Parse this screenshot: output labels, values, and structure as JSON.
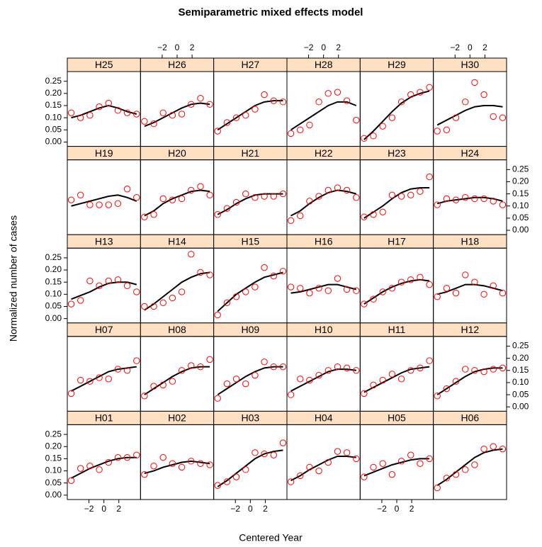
{
  "chart_data": {
    "type": "trellis",
    "title": "Semiparametric mixed effects model",
    "x_label": "Centered Year",
    "y_label": "Normalized number of cases",
    "x": [
      -4.375,
      -3.125,
      -1.875,
      -0.625,
      0.625,
      1.875,
      3.125,
      4.375
    ],
    "xlim": [
      -4.9,
      4.9
    ],
    "xticks": [
      {
        "value": -2,
        "label": "−2"
      },
      0,
      2
    ],
    "ylim": [
      -0.018,
      0.29
    ],
    "yticks": [
      {
        "value": 0,
        "label": "0.00"
      },
      {
        "value": 0.05,
        "label": "0.05"
      },
      {
        "value": 0.1,
        "label": "0.10"
      },
      {
        "value": 0.15,
        "label": "0.15"
      },
      {
        "value": 0.2,
        "label": "0.20"
      },
      {
        "value": 0.25,
        "label": "0.25"
      }
    ],
    "point_color": "#ff0000",
    "line_color": "#000000",
    "strip_color": "#ffe0c2",
    "panels": [
      {
        "title": "H25",
        "points": [
          0.12,
          0.1,
          0.11,
          0.145,
          0.16,
          0.13,
          0.12,
          0.115
        ],
        "fit": [
          0.1,
          0.11,
          0.125,
          0.14,
          0.15,
          0.14,
          0.125,
          0.115
        ]
      },
      {
        "title": "H26",
        "points": [
          0.085,
          0.075,
          0.12,
          0.11,
          0.115,
          0.155,
          0.18,
          0.155
        ],
        "fit": [
          0.065,
          0.08,
          0.1,
          0.12,
          0.14,
          0.155,
          0.16,
          0.155
        ]
      },
      {
        "title": "H27",
        "points": [
          0.045,
          0.08,
          0.1,
          0.11,
          0.135,
          0.195,
          0.17,
          0.165
        ],
        "fit": [
          0.05,
          0.075,
          0.1,
          0.125,
          0.15,
          0.165,
          0.17,
          0.17
        ]
      },
      {
        "title": "H28",
        "points": [
          0.035,
          0.05,
          0.07,
          0.165,
          0.2,
          0.205,
          0.17,
          0.09
        ],
        "fit": [
          0.05,
          0.075,
          0.1,
          0.125,
          0.15,
          0.165,
          0.165,
          0.15
        ]
      },
      {
        "title": "H29",
        "points": [
          0.015,
          0.025,
          0.065,
          0.1,
          0.165,
          0.195,
          0.205,
          0.225
        ],
        "fit": [
          0.01,
          0.045,
          0.085,
          0.125,
          0.16,
          0.185,
          0.2,
          0.21
        ]
      },
      {
        "title": "H30",
        "points": [
          0.045,
          0.05,
          0.1,
          0.165,
          0.245,
          0.195,
          0.105,
          0.1
        ],
        "fit": [
          0.07,
          0.09,
          0.11,
          0.13,
          0.145,
          0.15,
          0.15,
          0.145
        ]
      },
      {
        "title": "H19",
        "points": [
          0.125,
          0.145,
          0.105,
          0.105,
          0.105,
          0.11,
          0.17,
          0.135
        ],
        "fit": [
          0.1,
          0.11,
          0.12,
          0.13,
          0.14,
          0.145,
          0.135,
          0.12
        ]
      },
      {
        "title": "H20",
        "points": [
          0.055,
          0.065,
          0.13,
          0.125,
          0.13,
          0.165,
          0.18,
          0.145
        ],
        "fit": [
          0.06,
          0.08,
          0.11,
          0.13,
          0.145,
          0.16,
          0.165,
          0.16
        ]
      },
      {
        "title": "H21",
        "points": [
          0.065,
          0.09,
          0.115,
          0.15,
          0.135,
          0.14,
          0.14,
          0.15
        ],
        "fit": [
          0.065,
          0.085,
          0.11,
          0.13,
          0.145,
          0.15,
          0.15,
          0.15
        ]
      },
      {
        "title": "H22",
        "points": [
          0.04,
          0.06,
          0.12,
          0.14,
          0.165,
          0.175,
          0.165,
          0.135
        ],
        "fit": [
          0.06,
          0.08,
          0.11,
          0.135,
          0.155,
          0.165,
          0.16,
          0.15
        ]
      },
      {
        "title": "H23",
        "points": [
          0.055,
          0.065,
          0.075,
          0.145,
          0.14,
          0.145,
          0.16,
          0.22
        ],
        "fit": [
          0.05,
          0.075,
          0.1,
          0.13,
          0.155,
          0.17,
          0.175,
          0.175
        ]
      },
      {
        "title": "H24",
        "points": [
          0.105,
          0.13,
          0.125,
          0.135,
          0.13,
          0.13,
          0.12,
          0.105
        ],
        "fit": [
          0.11,
          0.12,
          0.125,
          0.13,
          0.135,
          0.135,
          0.13,
          0.12
        ]
      },
      {
        "title": "H13",
        "points": [
          0.06,
          0.075,
          0.155,
          0.135,
          0.155,
          0.16,
          0.135,
          0.11
        ],
        "fit": [
          0.08,
          0.095,
          0.11,
          0.13,
          0.145,
          0.15,
          0.15,
          0.14
        ]
      },
      {
        "title": "H14",
        "points": [
          0.05,
          0.05,
          0.065,
          0.085,
          0.11,
          0.265,
          0.19,
          0.18
        ],
        "fit": [
          0.035,
          0.06,
          0.09,
          0.12,
          0.15,
          0.17,
          0.185,
          0.19
        ]
      },
      {
        "title": "H15",
        "points": [
          0.015,
          0.065,
          0.09,
          0.11,
          0.13,
          0.21,
          0.175,
          0.195
        ],
        "fit": [
          0.03,
          0.065,
          0.1,
          0.125,
          0.15,
          0.17,
          0.18,
          0.19
        ]
      },
      {
        "title": "H16",
        "points": [
          0.13,
          0.125,
          0.105,
          0.125,
          0.115,
          0.165,
          0.12,
          0.115
        ],
        "fit": [
          0.105,
          0.11,
          0.12,
          0.13,
          0.14,
          0.14,
          0.13,
          0.12
        ]
      },
      {
        "title": "H17",
        "points": [
          0.06,
          0.08,
          0.11,
          0.125,
          0.15,
          0.16,
          0.17,
          0.14
        ],
        "fit": [
          0.06,
          0.085,
          0.11,
          0.13,
          0.145,
          0.155,
          0.16,
          0.155
        ]
      },
      {
        "title": "H18",
        "points": [
          0.09,
          0.125,
          0.105,
          0.18,
          0.15,
          0.1,
          0.135,
          0.105
        ],
        "fit": [
          0.1,
          0.11,
          0.125,
          0.14,
          0.14,
          0.135,
          0.125,
          0.115
        ]
      },
      {
        "title": "H07",
        "points": [
          0.055,
          0.11,
          0.105,
          0.12,
          0.115,
          0.155,
          0.15,
          0.19
        ],
        "fit": [
          0.065,
          0.085,
          0.105,
          0.125,
          0.145,
          0.155,
          0.16,
          0.165
        ]
      },
      {
        "title": "H08",
        "points": [
          0.045,
          0.085,
          0.09,
          0.105,
          0.15,
          0.17,
          0.165,
          0.195
        ],
        "fit": [
          0.05,
          0.075,
          0.1,
          0.125,
          0.145,
          0.16,
          0.165,
          0.165
        ]
      },
      {
        "title": "H09",
        "points": [
          0.035,
          0.095,
          0.115,
          0.095,
          0.13,
          0.185,
          0.165,
          0.165
        ],
        "fit": [
          0.05,
          0.075,
          0.1,
          0.125,
          0.145,
          0.16,
          0.165,
          0.165
        ]
      },
      {
        "title": "H10",
        "points": [
          0.05,
          0.115,
          0.11,
          0.13,
          0.15,
          0.165,
          0.16,
          0.15
        ],
        "fit": [
          0.065,
          0.085,
          0.105,
          0.125,
          0.145,
          0.155,
          0.155,
          0.15
        ]
      },
      {
        "title": "H11",
        "points": [
          0.055,
          0.09,
          0.11,
          0.135,
          0.115,
          0.15,
          0.16,
          0.19
        ],
        "fit": [
          0.06,
          0.08,
          0.1,
          0.12,
          0.14,
          0.155,
          0.16,
          0.165
        ]
      },
      {
        "title": "H12",
        "points": [
          0.045,
          0.075,
          0.105,
          0.155,
          0.15,
          0.145,
          0.155,
          0.16
        ],
        "fit": [
          0.05,
          0.075,
          0.1,
          0.125,
          0.145,
          0.155,
          0.16,
          0.16
        ]
      },
      {
        "title": "H01",
        "points": [
          0.06,
          0.11,
          0.12,
          0.105,
          0.135,
          0.155,
          0.155,
          0.165
        ],
        "fit": [
          0.07,
          0.09,
          0.11,
          0.125,
          0.14,
          0.15,
          0.155,
          0.155
        ]
      },
      {
        "title": "H02",
        "points": [
          0.085,
          0.12,
          0.155,
          0.13,
          0.115,
          0.14,
          0.13,
          0.125
        ],
        "fit": [
          0.09,
          0.1,
          0.115,
          0.125,
          0.135,
          0.14,
          0.135,
          0.13
        ]
      },
      {
        "title": "H03",
        "points": [
          0.04,
          0.055,
          0.075,
          0.105,
          0.175,
          0.17,
          0.165,
          0.215
        ],
        "fit": [
          0.035,
          0.06,
          0.09,
          0.12,
          0.15,
          0.17,
          0.18,
          0.185
        ]
      },
      {
        "title": "H04",
        "points": [
          0.055,
          0.08,
          0.115,
          0.1,
          0.135,
          0.18,
          0.175,
          0.15
        ],
        "fit": [
          0.06,
          0.08,
          0.105,
          0.125,
          0.145,
          0.16,
          0.16,
          0.155
        ]
      },
      {
        "title": "H05",
        "points": [
          0.075,
          0.115,
          0.13,
          0.085,
          0.14,
          0.165,
          0.13,
          0.15
        ],
        "fit": [
          0.08,
          0.095,
          0.11,
          0.125,
          0.135,
          0.145,
          0.15,
          0.15
        ]
      },
      {
        "title": "H06",
        "points": [
          0.03,
          0.07,
          0.085,
          0.105,
          0.125,
          0.19,
          0.2,
          0.19
        ],
        "fit": [
          0.04,
          0.065,
          0.095,
          0.125,
          0.155,
          0.175,
          0.185,
          0.19
        ]
      }
    ]
  }
}
